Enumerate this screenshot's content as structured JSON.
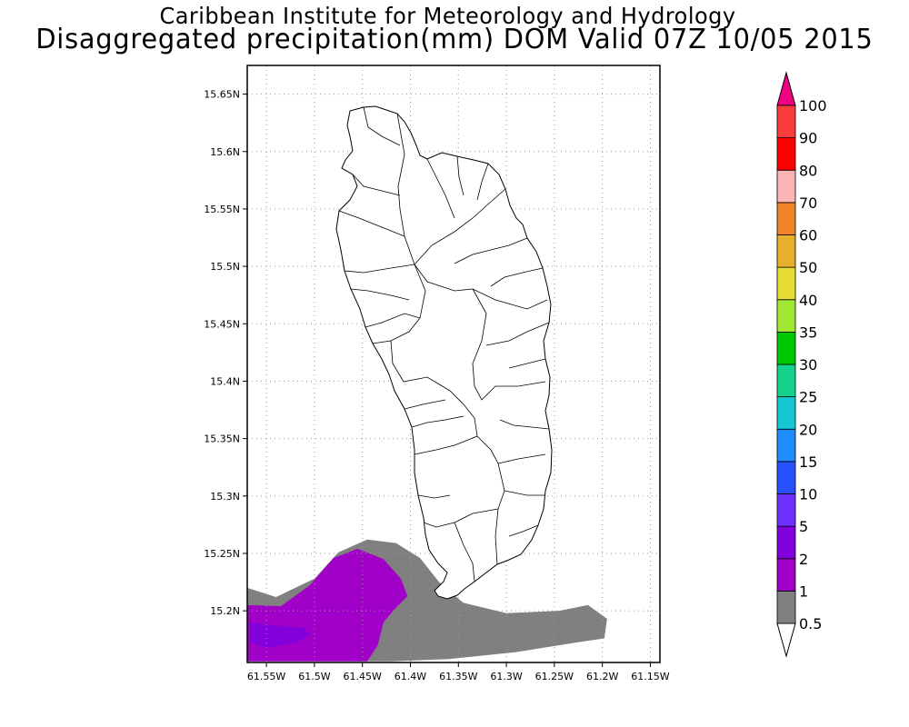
{
  "title": {
    "line1": "Caribbean Institute for Meteorology and Hydrology",
    "line2": "Disaggregated precipitation(mm) DOM Valid 07Z 10/05 2015"
  },
  "chart_data": {
    "type": "heatmap",
    "title": "Disaggregated precipitation(mm) DOM Valid 07Z 10/05 2015",
    "subtitle": "Caribbean Institute for Meteorology and Hydrology",
    "units": "mm",
    "x_axis": {
      "range": [
        -61.57,
        -61.14
      ],
      "ticks": [
        -61.55,
        -61.5,
        -61.45,
        -61.4,
        -61.35,
        -61.3,
        -61.25,
        -61.2,
        -61.15
      ],
      "tick_labels": [
        "61.55W",
        "61.5W",
        "61.45W",
        "61.4W",
        "61.35W",
        "61.3W",
        "61.25W",
        "61.2W",
        "61.15W"
      ]
    },
    "y_axis": {
      "range": [
        15.155,
        15.675
      ],
      "ticks": [
        15.2,
        15.25,
        15.3,
        15.35,
        15.4,
        15.45,
        15.5,
        15.55,
        15.6,
        15.65
      ],
      "tick_labels": [
        "15.2N",
        "15.25N",
        "15.3N",
        "15.35N",
        "15.4N",
        "15.45N",
        "15.5N",
        "15.55N",
        "15.6N",
        "15.65N"
      ]
    },
    "grid": true,
    "map_region": "Dominica",
    "colorbar": {
      "position": "right",
      "levels": [
        "0.5",
        "1",
        "2",
        "5",
        "10",
        "15",
        "20",
        "25",
        "30",
        "35",
        "40",
        "50",
        "60",
        "70",
        "80",
        "90",
        "100"
      ],
      "colors": [
        "#808080",
        "#a000c8",
        "#8200dc",
        "#6e32ff",
        "#2850ff",
        "#1e8cff",
        "#14c8d2",
        "#14d28c",
        "#00c800",
        "#a0e632",
        "#e6dc32",
        "#e6af2d",
        "#f08228",
        "#fab4b4",
        "#ff0000",
        "#fa3c3c",
        "#f00082"
      ],
      "under_color": "#ffffff",
      "over_color": "#f00082"
    },
    "precipitation_regions": [
      {
        "name": "0.5-1 mm",
        "color": "#808080",
        "polygon": [
          [
            -61.57,
            15.22
          ],
          [
            -61.54,
            15.212
          ],
          [
            -61.5,
            15.228
          ],
          [
            -61.475,
            15.251
          ],
          [
            -61.445,
            15.262
          ],
          [
            -61.415,
            15.259
          ],
          [
            -61.39,
            15.246
          ],
          [
            -61.37,
            15.225
          ],
          [
            -61.345,
            15.207
          ],
          [
            -61.3,
            15.198
          ],
          [
            -61.245,
            15.2
          ],
          [
            -61.215,
            15.205
          ],
          [
            -61.195,
            15.193
          ],
          [
            -61.198,
            15.176
          ],
          [
            -61.23,
            15.172
          ],
          [
            -61.29,
            15.164
          ],
          [
            -61.36,
            15.158
          ],
          [
            -61.42,
            15.156
          ],
          [
            -61.57,
            15.156
          ]
        ]
      },
      {
        "name": "1-2 mm",
        "color": "#a000c8",
        "polygon": [
          [
            -61.57,
            15.205
          ],
          [
            -61.535,
            15.204
          ],
          [
            -61.505,
            15.222
          ],
          [
            -61.48,
            15.246
          ],
          [
            -61.455,
            15.254
          ],
          [
            -61.428,
            15.245
          ],
          [
            -61.41,
            15.228
          ],
          [
            -61.403,
            15.213
          ],
          [
            -61.418,
            15.2
          ],
          [
            -61.428,
            15.19
          ],
          [
            -61.434,
            15.17
          ],
          [
            -61.445,
            15.156
          ],
          [
            -61.57,
            15.156
          ]
        ]
      },
      {
        "name": "2-5 mm",
        "color": "#8200dc",
        "polygon": [
          [
            -61.567,
            15.19
          ],
          [
            -61.54,
            15.187
          ],
          [
            -61.51,
            15.185
          ],
          [
            -61.505,
            15.179
          ],
          [
            -61.52,
            15.172
          ],
          [
            -61.55,
            15.168
          ],
          [
            -61.567,
            15.172
          ]
        ]
      }
    ]
  }
}
